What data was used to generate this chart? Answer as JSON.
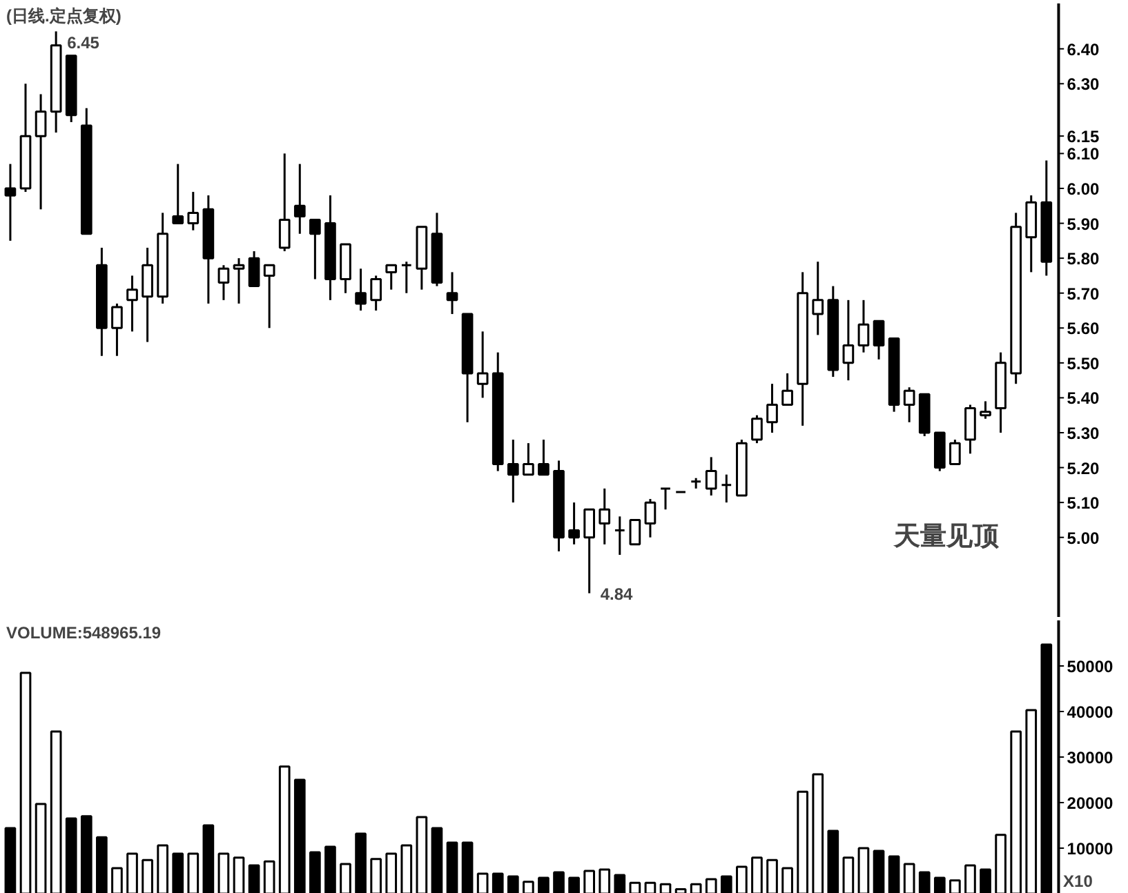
{
  "chart_data": [
    {
      "type": "candlestick",
      "title": "(日线.定点复权)",
      "categories": [
        null,
        null,
        null,
        null,
        null,
        null,
        null,
        null,
        null,
        null,
        null,
        null,
        null,
        null,
        null,
        null,
        null,
        null,
        null,
        null,
        null,
        null,
        null,
        null,
        null,
        null,
        null,
        null,
        null,
        null,
        null,
        null,
        null,
        null,
        null,
        null,
        null,
        null,
        null,
        null,
        null,
        null,
        null,
        null,
        null,
        null,
        null,
        null,
        null,
        null,
        null,
        null,
        null,
        null,
        null,
        null,
        null,
        null,
        null,
        null,
        null,
        null,
        null,
        null,
        null,
        null,
        null,
        null,
        null
      ],
      "ohlc": [
        [
          6.0,
          6.07,
          5.85,
          5.98
        ],
        [
          6.0,
          6.3,
          5.99,
          6.15
        ],
        [
          6.15,
          6.27,
          5.94,
          6.22
        ],
        [
          6.22,
          6.45,
          6.16,
          6.41
        ],
        [
          6.38,
          6.38,
          6.19,
          6.21
        ],
        [
          6.18,
          6.23,
          5.87,
          5.87
        ],
        [
          5.78,
          5.83,
          5.52,
          5.6
        ],
        [
          5.6,
          5.67,
          5.52,
          5.66
        ],
        [
          5.68,
          5.75,
          5.59,
          5.71
        ],
        [
          5.69,
          5.83,
          5.56,
          5.78
        ],
        [
          5.69,
          5.93,
          5.67,
          5.87
        ],
        [
          5.92,
          6.07,
          5.9,
          5.9
        ],
        [
          5.9,
          5.99,
          5.88,
          5.93
        ],
        [
          5.94,
          5.98,
          5.67,
          5.8
        ],
        [
          5.73,
          5.78,
          5.68,
          5.77
        ],
        [
          5.77,
          5.8,
          5.67,
          5.78
        ],
        [
          5.8,
          5.82,
          5.72,
          5.72
        ],
        [
          5.75,
          5.78,
          5.6,
          5.78
        ],
        [
          5.83,
          6.1,
          5.82,
          5.91
        ],
        [
          5.95,
          6.07,
          5.87,
          5.92
        ],
        [
          5.91,
          5.91,
          5.74,
          5.87
        ],
        [
          5.9,
          5.98,
          5.68,
          5.74
        ],
        [
          5.74,
          5.84,
          5.7,
          5.84
        ],
        [
          5.7,
          5.77,
          5.65,
          5.67
        ],
        [
          5.68,
          5.75,
          5.65,
          5.74
        ],
        [
          5.76,
          5.78,
          5.71,
          5.78
        ],
        [
          5.78,
          5.79,
          5.7,
          5.78
        ],
        [
          5.77,
          5.89,
          5.71,
          5.89
        ],
        [
          5.87,
          5.93,
          5.72,
          5.73
        ],
        [
          5.7,
          5.76,
          5.64,
          5.68
        ],
        [
          5.64,
          5.64,
          5.33,
          5.47
        ],
        [
          5.44,
          5.59,
          5.4,
          5.47
        ],
        [
          5.47,
          5.53,
          5.19,
          5.21
        ],
        [
          5.21,
          5.28,
          5.1,
          5.18
        ],
        [
          5.18,
          5.27,
          5.18,
          5.21
        ],
        [
          5.21,
          5.28,
          5.18,
          5.18
        ],
        [
          5.19,
          5.22,
          4.96,
          5.0
        ],
        [
          5.02,
          5.1,
          4.98,
          5.0
        ],
        [
          5.0,
          5.08,
          4.84,
          5.08
        ],
        [
          5.04,
          5.14,
          4.98,
          5.08
        ],
        [
          5.02,
          5.06,
          4.95,
          5.02
        ],
        [
          4.98,
          5.05,
          4.98,
          5.05
        ],
        [
          5.04,
          5.11,
          5.0,
          5.1
        ],
        [
          5.14,
          5.14,
          5.08,
          5.14
        ],
        [
          5.13,
          5.13,
          5.13,
          5.13
        ],
        [
          5.16,
          5.17,
          5.14,
          5.16
        ],
        [
          5.14,
          5.23,
          5.12,
          5.19
        ],
        [
          5.15,
          5.18,
          5.1,
          5.15
        ],
        [
          5.12,
          5.28,
          5.12,
          5.27
        ],
        [
          5.28,
          5.35,
          5.27,
          5.34
        ],
        [
          5.33,
          5.44,
          5.3,
          5.38
        ],
        [
          5.38,
          5.47,
          5.38,
          5.42
        ],
        [
          5.44,
          5.76,
          5.32,
          5.7
        ],
        [
          5.64,
          5.79,
          5.58,
          5.68
        ],
        [
          5.68,
          5.72,
          5.46,
          5.48
        ],
        [
          5.5,
          5.68,
          5.45,
          5.55
        ],
        [
          5.55,
          5.68,
          5.53,
          5.61
        ],
        [
          5.62,
          5.62,
          5.51,
          5.55
        ],
        [
          5.57,
          5.57,
          5.36,
          5.38
        ],
        [
          5.38,
          5.43,
          5.33,
          5.42
        ],
        [
          5.41,
          5.41,
          5.29,
          5.3
        ],
        [
          5.3,
          5.3,
          5.19,
          5.2
        ],
        [
          5.21,
          5.28,
          5.21,
          5.27
        ],
        [
          5.28,
          5.38,
          5.24,
          5.37
        ],
        [
          5.35,
          5.39,
          5.34,
          5.36
        ],
        [
          5.37,
          5.53,
          5.3,
          5.5
        ],
        [
          5.47,
          5.93,
          5.44,
          5.89
        ],
        [
          5.86,
          5.98,
          5.76,
          5.96
        ],
        [
          5.96,
          6.08,
          5.75,
          5.79
        ]
      ],
      "ylim": [
        4.77,
        6.53
      ],
      "yticks": [
        {
          "value": 5.0,
          "label": "5.00"
        },
        {
          "value": 5.1,
          "label": "5.10"
        },
        {
          "value": 5.2,
          "label": "5.20"
        },
        {
          "value": 5.3,
          "label": "5.30"
        },
        {
          "value": 5.4,
          "label": "5.40"
        },
        {
          "value": 5.5,
          "label": "5.50"
        },
        {
          "value": 5.6,
          "label": "5.60"
        },
        {
          "value": 5.7,
          "label": "5.70"
        },
        {
          "value": 5.8,
          "label": "5.80"
        },
        {
          "value": 5.9,
          "label": "5.90"
        },
        {
          "value": 6.0,
          "label": "6.00"
        },
        {
          "value": 6.1,
          "label": "6.10"
        },
        {
          "value": 6.15,
          "label": "6.15"
        },
        {
          "value": 6.3,
          "label": "6.30"
        },
        {
          "value": 6.4,
          "label": "6.40"
        }
      ],
      "tick_labels": "y",
      "annotations": [
        "6.45",
        "4.84",
        "天量见顶"
      ]
    },
    {
      "type": "bar",
      "title": "VOLUME:548965.19",
      "categories": [
        null,
        null,
        null,
        null,
        null,
        null,
        null,
        null,
        null,
        null,
        null,
        null,
        null,
        null,
        null,
        null,
        null,
        null,
        null,
        null,
        null,
        null,
        null,
        null,
        null,
        null,
        null,
        null,
        null,
        null,
        null,
        null,
        null,
        null,
        null,
        null,
        null,
        null,
        null,
        null,
        null,
        null,
        null,
        null,
        null,
        null,
        null,
        null,
        null,
        null,
        null,
        null,
        null,
        null,
        null,
        null,
        null,
        null,
        null,
        null,
        null,
        null,
        null,
        null,
        null,
        null,
        null,
        null,
        null
      ],
      "values": [
        14400,
        48500,
        19700,
        35600,
        16500,
        17000,
        12400,
        5600,
        8800,
        7400,
        10600,
        8800,
        8800,
        15000,
        8800,
        7900,
        6200,
        7100,
        27900,
        25000,
        9100,
        10300,
        6500,
        13200,
        7600,
        8800,
        10600,
        16800,
        14400,
        11200,
        11200,
        4400,
        4400,
        3800,
        2600,
        3500,
        4700,
        3500,
        5000,
        5300,
        4100,
        2400,
        2400,
        2100,
        1000,
        2100,
        3200,
        3800,
        5900,
        7900,
        7400,
        5600,
        22400,
        26200,
        13800,
        7900,
        10000,
        9400,
        8200,
        6500,
        4700,
        3500,
        2900,
        6200,
        5300,
        12900,
        35600,
        40300,
        54700
      ],
      "colors": [
        "#000000",
        "#ffffff",
        "#ffffff",
        "#ffffff",
        "#000000",
        "#000000",
        "#000000",
        "#ffffff",
        "#ffffff",
        "#ffffff",
        "#ffffff",
        "#000000",
        "#ffffff",
        "#000000",
        "#ffffff",
        "#ffffff",
        "#000000",
        "#ffffff",
        "#ffffff",
        "#000000",
        "#000000",
        "#000000",
        "#ffffff",
        "#000000",
        "#ffffff",
        "#ffffff",
        "#ffffff",
        "#ffffff",
        "#000000",
        "#000000",
        "#000000",
        "#ffffff",
        "#000000",
        "#000000",
        "#ffffff",
        "#000000",
        "#000000",
        "#000000",
        "#ffffff",
        "#ffffff",
        "#000000",
        "#ffffff",
        "#ffffff",
        "#ffffff",
        "#ffffff",
        "#ffffff",
        "#ffffff",
        "#000000",
        "#ffffff",
        "#ffffff",
        "#ffffff",
        "#ffffff",
        "#ffffff",
        "#ffffff",
        "#000000",
        "#ffffff",
        "#ffffff",
        "#000000",
        "#000000",
        "#ffffff",
        "#000000",
        "#000000",
        "#ffffff",
        "#ffffff",
        "#000000",
        "#ffffff",
        "#ffffff",
        "#ffffff",
        "#000000"
      ],
      "ylim": [
        0,
        60000
      ],
      "yticks": [
        10000,
        20000,
        30000,
        40000,
        50000
      ],
      "tick_labels": "y",
      "annotations": [
        "X10"
      ]
    }
  ]
}
